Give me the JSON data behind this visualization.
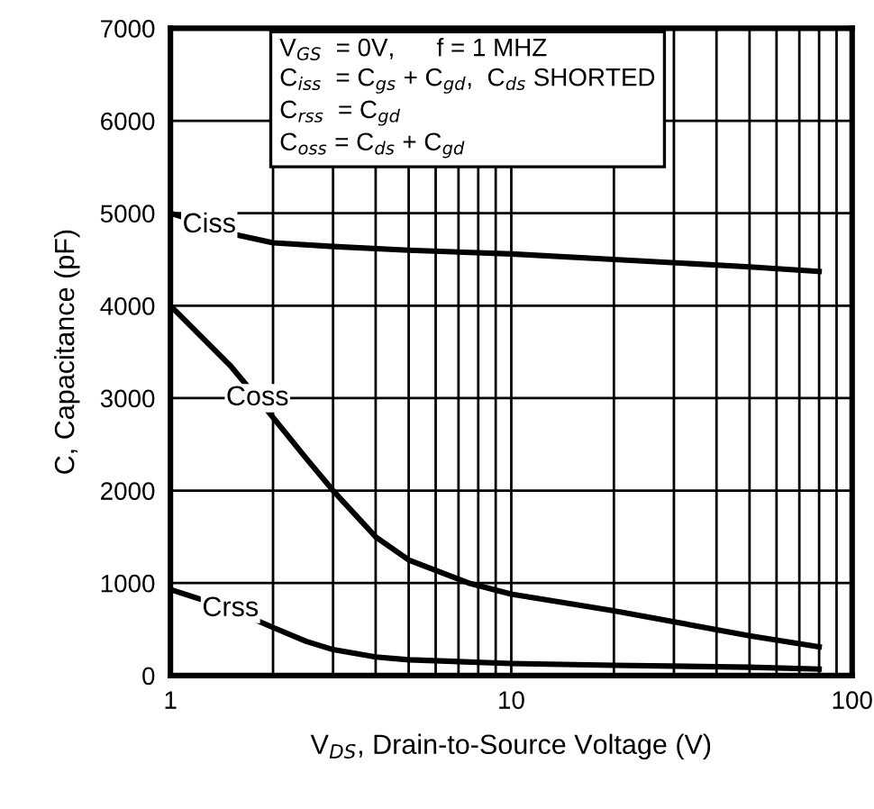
{
  "chart_data": {
    "type": "line",
    "xlabel": "V$_{DS}$, Drain-to-Source Voltage (V)",
    "ylabel": "C, Capacitance (pF)",
    "log": "x",
    "xlim": [
      1,
      100
    ],
    "ylim": [
      0,
      7000
    ],
    "xticks": [
      1,
      {
        "value": 2,
        "label": null
      },
      {
        "value": 3,
        "label": null
      },
      {
        "value": 4,
        "label": null
      },
      {
        "value": 5,
        "label": null
      },
      {
        "value": 6,
        "label": null
      },
      {
        "value": 7,
        "label": null
      },
      {
        "value": 8,
        "label": null
      },
      {
        "value": 9,
        "label": null
      },
      10,
      {
        "value": 20,
        "label": null
      },
      {
        "value": 30,
        "label": null
      },
      {
        "value": 40,
        "label": null
      },
      {
        "value": 50,
        "label": null
      },
      {
        "value": 60,
        "label": null
      },
      {
        "value": 70,
        "label": null
      },
      {
        "value": 80,
        "label": null
      },
      {
        "value": 90,
        "label": null
      },
      100
    ],
    "yticks": [
      0,
      1000,
      2000,
      3000,
      4000,
      5000,
      6000,
      7000
    ],
    "grid": true,
    "legend": false,
    "marker": "none",
    "line_style": "solid",
    "annotations": [
      "V$_{GS}$  = 0V,      f = 1 MHZ\nC$_{iss}$  = C$_{gs}$ + C$_{gd}$,  C$_{ds}$ SHORTED\nC$_{rss}$  = C$_{gd}$\nC$_{oss}$ = C$_{ds}$ + C$_{gd}$"
    ],
    "series": [
      {
        "name": "Ciss",
        "color": "#000000",
        "x": [
          1,
          1.3,
          1.5,
          2,
          3,
          5,
          10,
          20,
          50,
          80
        ],
        "values": [
          5000,
          4870,
          4780,
          4680,
          4640,
          4600,
          4560,
          4500,
          4420,
          4370
        ]
      },
      {
        "name": "Coss",
        "color": "#000000",
        "x": [
          1,
          1.5,
          1.8,
          2.5,
          3,
          4,
          5,
          7.5,
          10,
          20,
          50,
          80
        ],
        "values": [
          4000,
          3350,
          3000,
          2350,
          2000,
          1500,
          1250,
          1000,
          880,
          700,
          430,
          310
        ]
      },
      {
        "name": "Crss",
        "color": "#000000",
        "x": [
          1,
          1.5,
          2,
          2.5,
          3,
          4,
          5,
          10,
          20,
          50,
          80
        ],
        "values": [
          930,
          720,
          520,
          370,
          280,
          200,
          170,
          130,
          110,
          90,
          70
        ]
      }
    ]
  }
}
